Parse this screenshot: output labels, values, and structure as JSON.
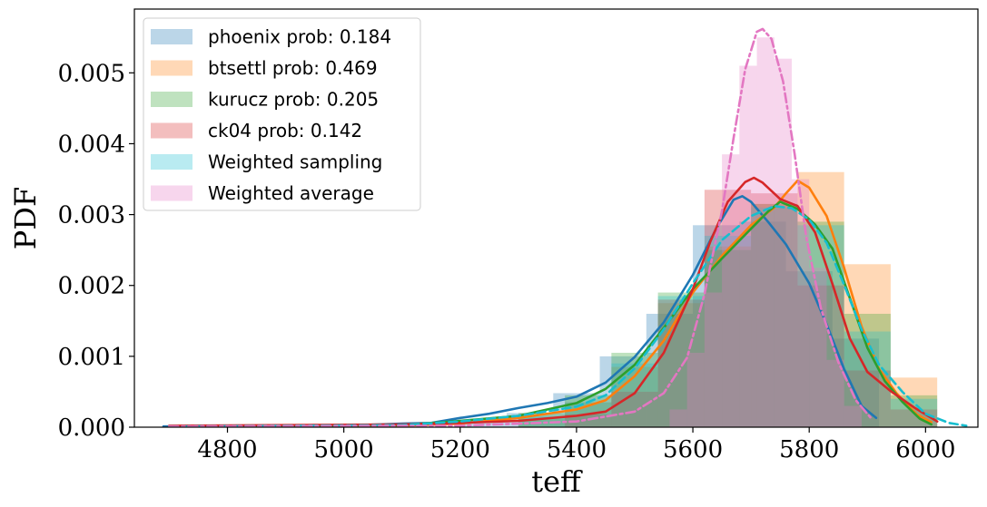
{
  "chart_data": {
    "type": "area",
    "xlabel": "teff",
    "ylabel": "PDF",
    "xlim": [
      4640,
      6090
    ],
    "ylim": [
      0,
      0.0059
    ],
    "xticks": [
      "4800",
      "5000",
      "5200",
      "5400",
      "5600",
      "5800",
      "6000"
    ],
    "yticks": [
      "0.000",
      "0.001",
      "0.002",
      "0.003",
      "0.004",
      "0.005"
    ],
    "grid": false,
    "legend_position": "top-left",
    "series": [
      {
        "name": "phoenix prob: 0.184",
        "color": "#1f77b4",
        "line_style": "solid",
        "curve": [
          [
            4690,
            1e-05
          ],
          [
            4900,
            2e-05
          ],
          [
            4950,
            3e-05
          ],
          [
            5000,
            2e-05
          ],
          [
            5100,
            5e-05
          ],
          [
            5150,
            6e-05
          ],
          [
            5200,
            0.00013
          ],
          [
            5250,
            0.00019
          ],
          [
            5300,
            0.00027
          ],
          [
            5350,
            0.00034
          ],
          [
            5400,
            0.00043
          ],
          [
            5450,
            0.00063
          ],
          [
            5500,
            0.00099
          ],
          [
            5550,
            0.00148
          ],
          [
            5600,
            0.00215
          ],
          [
            5640,
            0.0028
          ],
          [
            5670,
            0.00321
          ],
          [
            5685,
            0.00326
          ],
          [
            5700,
            0.00318
          ],
          [
            5730,
            0.00289
          ],
          [
            5760,
            0.00258
          ],
          [
            5800,
            0.00203
          ],
          [
            5830,
            0.00145
          ],
          [
            5860,
            0.00082
          ],
          [
            5890,
            0.0003
          ],
          [
            5915,
            0.00013
          ]
        ],
        "hist_bins": [
          [
            5200,
            5280,
            0.00011
          ],
          [
            5280,
            5360,
            0.0002
          ],
          [
            5360,
            5440,
            0.00048
          ],
          [
            5440,
            5520,
            0.001
          ],
          [
            5520,
            5600,
            0.0016
          ],
          [
            5600,
            5680,
            0.00285
          ],
          [
            5680,
            5760,
            0.0029
          ],
          [
            5760,
            5840,
            0.0022
          ],
          [
            5840,
            5920,
            0.00125
          ]
        ]
      },
      {
        "name": "btsettl prob: 0.469",
        "color": "#ff7f0e",
        "line_style": "solid",
        "curve": [
          [
            4700,
            1e-05
          ],
          [
            5100,
            2e-05
          ],
          [
            5200,
            5e-05
          ],
          [
            5300,
            0.00013
          ],
          [
            5400,
            0.00025
          ],
          [
            5450,
            0.00038
          ],
          [
            5500,
            0.00072
          ],
          [
            5550,
            0.00122
          ],
          [
            5600,
            0.0019
          ],
          [
            5650,
            0.00242
          ],
          [
            5700,
            0.00285
          ],
          [
            5740,
            0.0031
          ],
          [
            5760,
            0.0033
          ],
          [
            5780,
            0.00348
          ],
          [
            5800,
            0.00338
          ],
          [
            5830,
            0.00298
          ],
          [
            5860,
            0.00225
          ],
          [
            5890,
            0.00142
          ],
          [
            5920,
            0.00082
          ],
          [
            5950,
            0.00048
          ],
          [
            5985,
            0.00018
          ],
          [
            6010,
            7e-05
          ]
        ],
        "hist_bins": [
          [
            5300,
            5380,
            0.00012
          ],
          [
            5380,
            5460,
            0.00035
          ],
          [
            5460,
            5540,
            0.00085
          ],
          [
            5540,
            5620,
            0.00175
          ],
          [
            5620,
            5700,
            0.00255
          ],
          [
            5700,
            5780,
            0.00315
          ],
          [
            5780,
            5860,
            0.0036
          ],
          [
            5860,
            5940,
            0.0023
          ],
          [
            5940,
            6020,
            0.0007
          ]
        ]
      },
      {
        "name": "kurucz prob: 0.205",
        "color": "#2ca02c",
        "line_style": "solid",
        "curve": [
          [
            4700,
            1e-05
          ],
          [
            5100,
            3e-05
          ],
          [
            5200,
            9e-05
          ],
          [
            5300,
            0.00016
          ],
          [
            5400,
            0.00034
          ],
          [
            5450,
            0.00054
          ],
          [
            5500,
            0.00088
          ],
          [
            5550,
            0.0014
          ],
          [
            5600,
            0.00195
          ],
          [
            5650,
            0.00238
          ],
          [
            5700,
            0.0028
          ],
          [
            5730,
            0.00305
          ],
          [
            5750,
            0.00318
          ],
          [
            5780,
            0.00308
          ],
          [
            5810,
            0.00286
          ],
          [
            5840,
            0.00252
          ],
          [
            5870,
            0.00182
          ],
          [
            5900,
            0.00112
          ],
          [
            5930,
            0.00065
          ],
          [
            5960,
            0.00036
          ],
          [
            5990,
            0.00012
          ],
          [
            6010,
            4e-05
          ]
        ],
        "hist_bins": [
          [
            5300,
            5380,
            0.0002
          ],
          [
            5380,
            5460,
            0.00045
          ],
          [
            5460,
            5540,
            0.00105
          ],
          [
            5540,
            5620,
            0.0019
          ],
          [
            5620,
            5700,
            0.0025
          ],
          [
            5700,
            5780,
            0.00315
          ],
          [
            5780,
            5860,
            0.0029
          ],
          [
            5860,
            5940,
            0.0016
          ],
          [
            5940,
            6020,
            0.00045
          ]
        ]
      },
      {
        "name": "ck04 prob: 0.142",
        "color": "#d62728",
        "line_style": "solid",
        "curve": [
          [
            4700,
            2e-05
          ],
          [
            5100,
            4e-05
          ],
          [
            5200,
            6e-05
          ],
          [
            5300,
            9e-05
          ],
          [
            5400,
            0.00016
          ],
          [
            5450,
            0.00022
          ],
          [
            5500,
            0.00048
          ],
          [
            5550,
            0.00105
          ],
          [
            5600,
            0.00195
          ],
          [
            5630,
            0.00262
          ],
          [
            5660,
            0.00318
          ],
          [
            5690,
            0.00346
          ],
          [
            5705,
            0.00352
          ],
          [
            5720,
            0.00345
          ],
          [
            5750,
            0.00322
          ],
          [
            5780,
            0.00312
          ],
          [
            5810,
            0.00275
          ],
          [
            5840,
            0.00202
          ],
          [
            5870,
            0.00125
          ],
          [
            5900,
            0.00078
          ],
          [
            5940,
            0.00051
          ],
          [
            5980,
            0.00028
          ],
          [
            6020,
            8e-05
          ]
        ],
        "hist_bins": [
          [
            5380,
            5460,
            0.00018
          ],
          [
            5460,
            5540,
            0.0005
          ],
          [
            5540,
            5620,
            0.0018
          ],
          [
            5620,
            5700,
            0.00335
          ],
          [
            5700,
            5780,
            0.0033
          ],
          [
            5780,
            5860,
            0.002
          ],
          [
            5860,
            5940,
            0.0008
          ],
          [
            5940,
            6020,
            0.00025
          ]
        ]
      },
      {
        "name": "Weighted sampling",
        "color": "#17becf",
        "line_style": "dashed",
        "curve": [
          [
            4700,
            1e-05
          ],
          [
            5100,
            3e-05
          ],
          [
            5200,
            8e-05
          ],
          [
            5300,
            0.00016
          ],
          [
            5400,
            0.00029
          ],
          [
            5450,
            0.00045
          ],
          [
            5500,
            0.00083
          ],
          [
            5550,
            0.00138
          ],
          [
            5600,
            0.00203
          ],
          [
            5650,
            0.00264
          ],
          [
            5700,
            0.00298
          ],
          [
            5740,
            0.00312
          ],
          [
            5770,
            0.00309
          ],
          [
            5800,
            0.00293
          ],
          [
            5830,
            0.0026
          ],
          [
            5860,
            0.00201
          ],
          [
            5890,
            0.00138
          ],
          [
            5920,
            0.00088
          ],
          [
            5960,
            0.0005
          ],
          [
            6000,
            0.00019
          ],
          [
            6040,
            6e-05
          ],
          [
            6070,
            2e-05
          ]
        ],
        "hist_bins": [
          [
            5300,
            5380,
            0.00015
          ],
          [
            5380,
            5460,
            0.00035
          ],
          [
            5460,
            5540,
            0.0009
          ],
          [
            5540,
            5620,
            0.00185
          ],
          [
            5620,
            5700,
            0.0027
          ],
          [
            5700,
            5780,
            0.0031
          ],
          [
            5780,
            5860,
            0.00285
          ],
          [
            5860,
            5940,
            0.00135
          ],
          [
            5940,
            6020,
            0.0004
          ]
        ]
      },
      {
        "name": "Weighted average",
        "color": "#e377c2",
        "line_style": "dashdot",
        "curve": [
          [
            4700,
            1e-05
          ],
          [
            5200,
            2e-05
          ],
          [
            5400,
            8e-05
          ],
          [
            5500,
            0.00022
          ],
          [
            5550,
            0.00048
          ],
          [
            5590,
            0.00098
          ],
          [
            5620,
            0.00188
          ],
          [
            5650,
            0.00305
          ],
          [
            5670,
            0.00408
          ],
          [
            5690,
            0.00505
          ],
          [
            5710,
            0.00558
          ],
          [
            5720,
            0.00562
          ],
          [
            5735,
            0.00548
          ],
          [
            5755,
            0.00488
          ],
          [
            5775,
            0.00385
          ],
          [
            5795,
            0.00268
          ],
          [
            5820,
            0.00168
          ],
          [
            5850,
            0.00092
          ],
          [
            5880,
            0.00038
          ],
          [
            5905,
            0.00014
          ]
        ],
        "hist_bins": [
          [
            5560,
            5590,
            0.00025
          ],
          [
            5590,
            5620,
            0.00105
          ],
          [
            5620,
            5650,
            0.0019
          ],
          [
            5650,
            5680,
            0.00385
          ],
          [
            5680,
            5710,
            0.0051
          ],
          [
            5710,
            5740,
            0.0055
          ],
          [
            5740,
            5770,
            0.0052
          ],
          [
            5770,
            5800,
            0.0035
          ],
          [
            5800,
            5830,
            0.00225
          ],
          [
            5830,
            5860,
            0.00095
          ],
          [
            5860,
            5890,
            0.0003
          ]
        ]
      }
    ]
  }
}
